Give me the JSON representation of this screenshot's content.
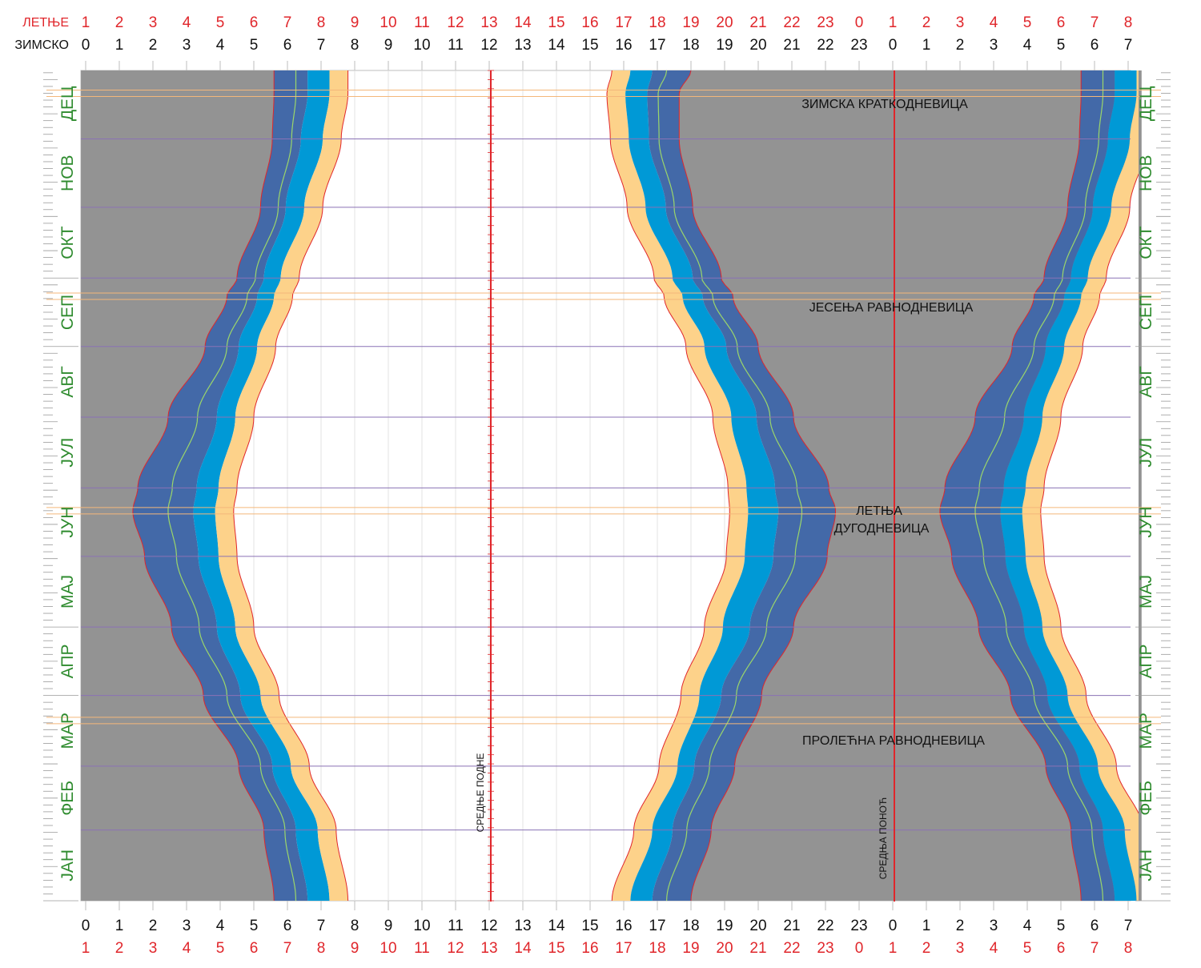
{
  "chart_data": {
    "type": "area",
    "time_scales": {
      "summer_label": "ЛЕТЊЕ",
      "winter_label": "ЗИМСКО",
      "winter_ticks": [
        "0",
        "1",
        "2",
        "3",
        "4",
        "5",
        "6",
        "7",
        "8",
        "9",
        "10",
        "11",
        "12",
        "13",
        "14",
        "15",
        "16",
        "17",
        "18",
        "19",
        "20",
        "21",
        "22",
        "23",
        "0",
        "1",
        "2",
        "3",
        "4",
        "5",
        "6",
        "7"
      ],
      "summer_ticks": [
        "1",
        "2",
        "3",
        "4",
        "5",
        "6",
        "7",
        "8",
        "9",
        "10",
        "11",
        "12",
        "13",
        "14",
        "15",
        "16",
        "17",
        "18",
        "19",
        "20",
        "21",
        "22",
        "23",
        "0",
        "1",
        "2",
        "3",
        "4",
        "5",
        "6",
        "7",
        "8"
      ]
    },
    "x_range_hours": [
      0,
      31.4
    ],
    "months_bottom_to_top": [
      "ЈАН",
      "ФЕБ",
      "МАР",
      "АПР",
      "МАЈ",
      "ЈУН",
      "ЈУЛ",
      "АВГ",
      "СЕП",
      "ОКТ",
      "НОВ",
      "ДЕЦ"
    ],
    "annotations": {
      "winter_solstice": "ЗИМСКА КРАТКОДНЕВИЦА",
      "autumn_equinox": "ЈЕСЕЊА РАВНОДНЕВИЦА",
      "summer_solstice_line1": "ЛЕТЊА",
      "summer_solstice_line2": "ДУГОДНЕВИЦА",
      "spring_equinox": "ПРОЛЕЋНА РАВНОДНЕВИЦА",
      "mean_noon": "СРЕДЊЕ ПОДНЕ",
      "mean_midnight": "СРЕДЊА ПОНОЋ"
    },
    "morning_bands_hours": {
      "day_of_year": [
        1,
        32,
        60,
        91,
        121,
        152,
        172,
        182,
        213,
        244,
        266,
        274,
        305,
        335,
        355,
        365
      ],
      "night_end": [
        5.6,
        5.3,
        4.55,
        3.5,
        2.55,
        1.75,
        1.4,
        1.55,
        2.45,
        3.55,
        4.2,
        4.5,
        5.2,
        5.55,
        5.6,
        5.6
      ],
      "civil_dawn": [
        6.6,
        6.25,
        5.55,
        4.6,
        3.9,
        3.35,
        3.2,
        3.3,
        3.9,
        4.55,
        5.1,
        5.3,
        5.95,
        6.4,
        6.6,
        6.6
      ],
      "sunrise": [
        7.25,
        6.9,
        6.1,
        5.2,
        4.45,
        3.95,
        3.85,
        3.95,
        4.45,
        5.1,
        5.6,
        5.8,
        6.5,
        7.05,
        7.25,
        7.25
      ]
    },
    "evening_bands_hours": {
      "day_of_year": [
        1,
        32,
        60,
        91,
        121,
        152,
        172,
        182,
        213,
        244,
        266,
        274,
        305,
        335,
        355,
        365
      ],
      "sunset": [
        16.2,
        16.85,
        17.6,
        18.25,
        18.95,
        19.6,
        19.7,
        19.65,
        19.2,
        18.4,
        17.75,
        17.45,
        16.65,
        16.15,
        16.05,
        16.2
      ],
      "civil_dusk": [
        16.85,
        17.45,
        18.1,
        18.9,
        19.75,
        20.45,
        20.6,
        20.5,
        19.95,
        19.05,
        18.35,
        18.05,
        17.25,
        16.75,
        16.7,
        16.85
      ],
      "night_start": [
        18.0,
        18.6,
        19.3,
        20.1,
        21.05,
        22.05,
        22.3,
        22.1,
        21.05,
        20.0,
        19.25,
        18.9,
        18.05,
        17.65,
        17.65,
        18.0
      ]
    },
    "colors": {
      "night": "#939393",
      "astronomical_twilight": "#4369a8",
      "civil_twilight": "#0099d6",
      "nautical_line": "#9bd66a",
      "dawn_dusk_glow": "#fdd28a",
      "band_outline": "#e0262b",
      "noon_midnight_line": "#e0262b",
      "month_line": "#8a72b5",
      "event_line": "#f4b77a",
      "month_label": "#2e8b2e",
      "summer_scale": "#e0262b"
    }
  }
}
